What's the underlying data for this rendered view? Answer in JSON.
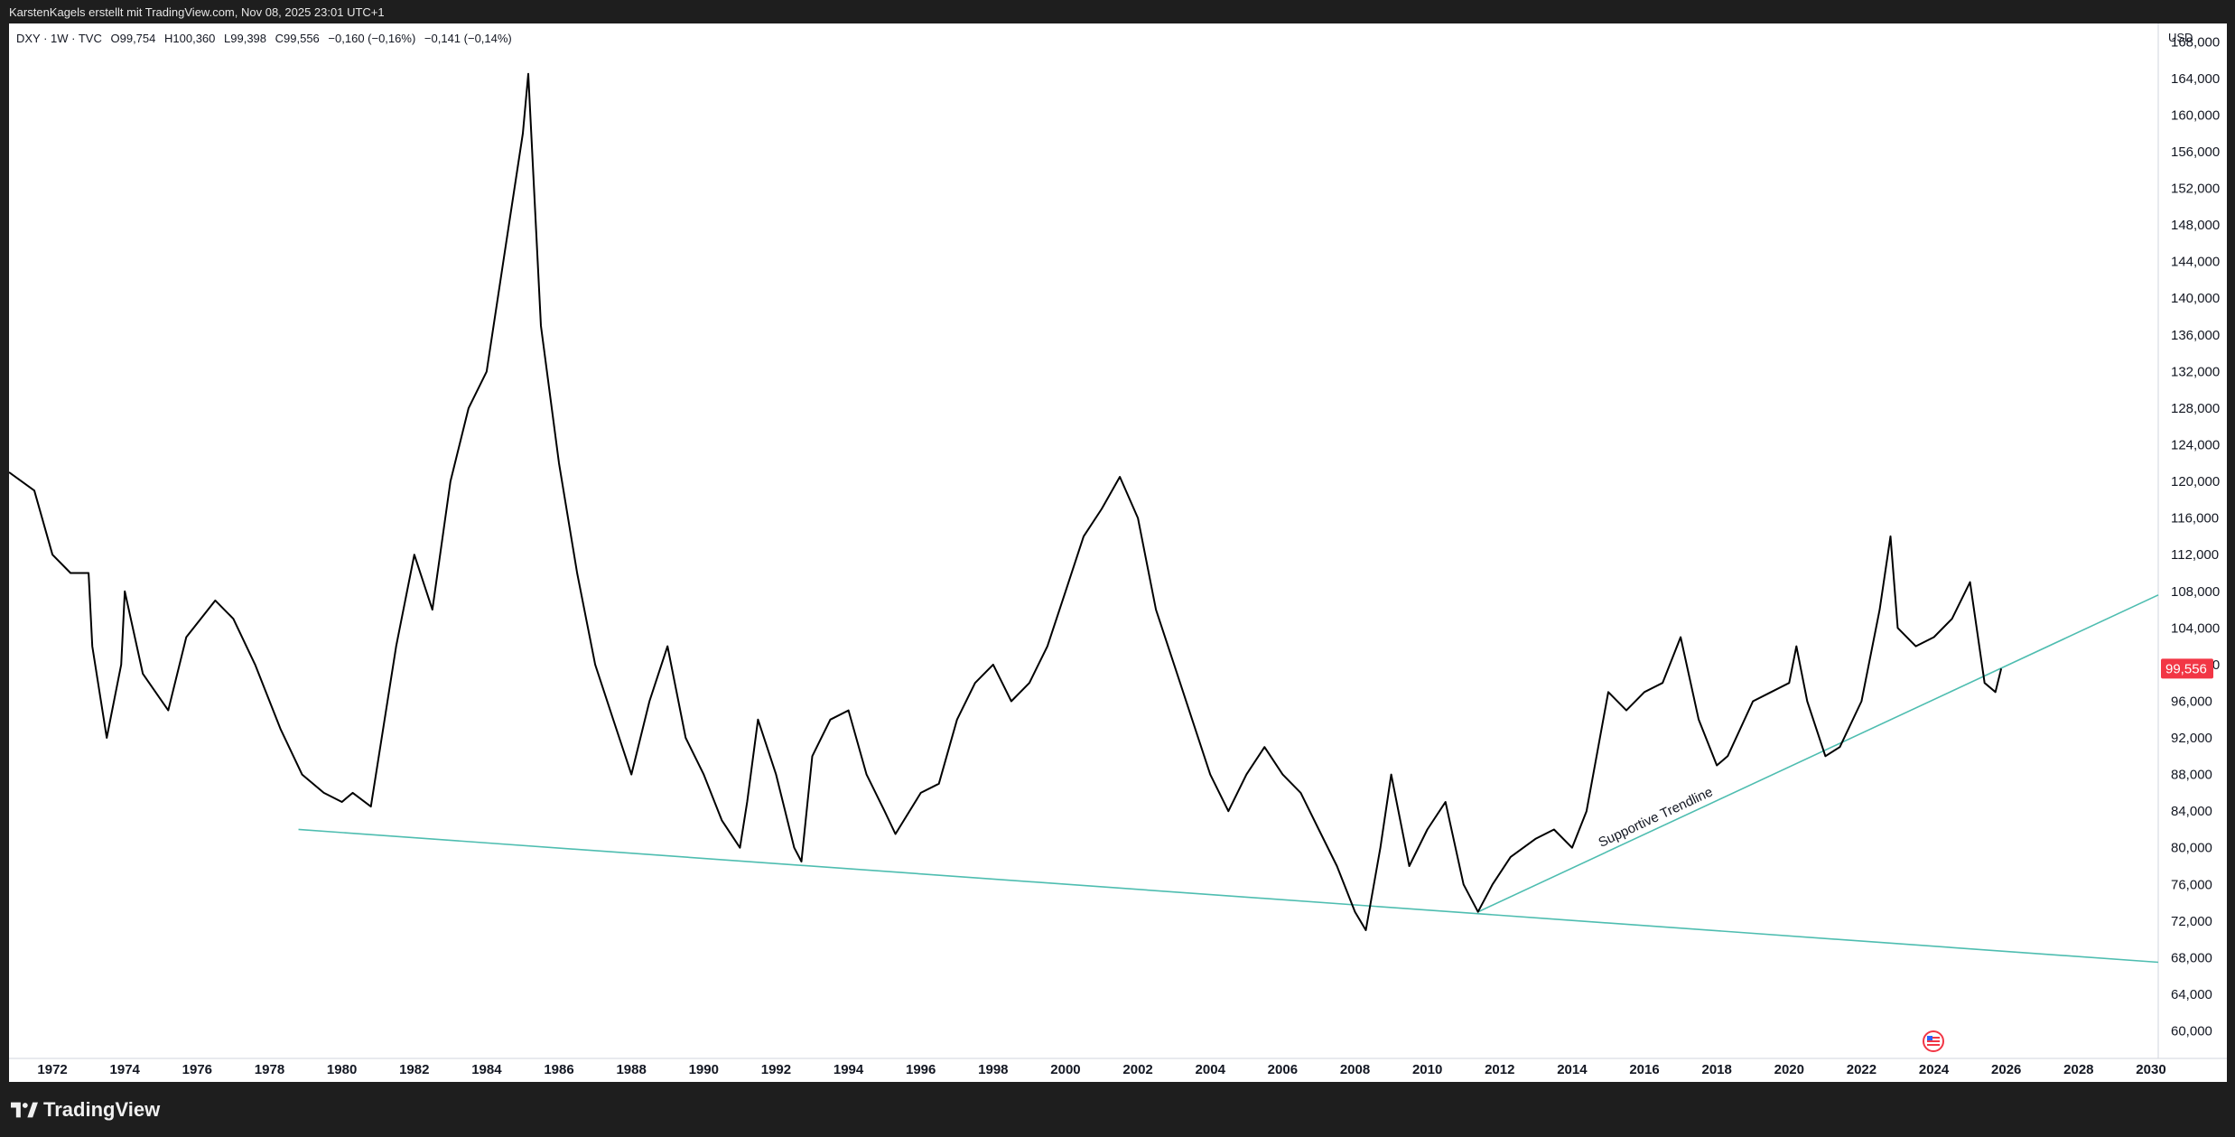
{
  "header": {
    "credit": "KarstenKagels erstellt mit TradingView.com, Nov 08, 2025 23:01 UTC+1"
  },
  "legend": {
    "symbol": "DXY · 1W · TVC",
    "open": "O99,754",
    "high": "H100,360",
    "low": "L99,398",
    "close": "C99,556",
    "change1": "−0,160 (−0,16%)",
    "change2": "−0,141 (−0,14%)"
  },
  "price_axis": {
    "currency": "USD",
    "last_price_label": "99,556",
    "last_price_color": "#f23645"
  },
  "footer": {
    "brand": "TradingView"
  },
  "colors": {
    "trendline": "#4ebdb0",
    "price_line": "#000000"
  },
  "chart_data": {
    "type": "line",
    "title": "",
    "x_unit": "year",
    "y_unit": "price",
    "xlim": [
      1970.8,
      2030.2
    ],
    "ylim": [
      57000,
      170000
    ],
    "yticks": [
      60000,
      64000,
      68000,
      72000,
      76000,
      80000,
      84000,
      88000,
      92000,
      96000,
      100000,
      104000,
      108000,
      112000,
      116000,
      120000,
      124000,
      128000,
      132000,
      136000,
      140000,
      144000,
      148000,
      152000,
      156000,
      160000,
      164000,
      168000
    ],
    "ytick_labels": [
      "60,000",
      "64,000",
      "68,000",
      "72,000",
      "76,000",
      "80,000",
      "84,000",
      "88,000",
      "92,000",
      "96,000",
      "100,000",
      "104,000",
      "108,000",
      "112,000",
      "116,000",
      "120,000",
      "124,000",
      "128,000",
      "132,000",
      "136,000",
      "140,000",
      "144,000",
      "148,000",
      "152,000",
      "156,000",
      "160,000",
      "164,000",
      "168,000"
    ],
    "xticks": [
      1972,
      1974,
      1976,
      1978,
      1980,
      1982,
      1984,
      1986,
      1988,
      1990,
      1992,
      1994,
      1996,
      1998,
      2000,
      2002,
      2004,
      2006,
      2008,
      2010,
      2012,
      2014,
      2016,
      2018,
      2020,
      2022,
      2024,
      2026,
      2028,
      2030
    ],
    "xtick_labels": [
      "1972",
      "1974",
      "1976",
      "1978",
      "1980",
      "1982",
      "1984",
      "1986",
      "1988",
      "1990",
      "1992",
      "1994",
      "1996",
      "1998",
      "2000",
      "2002",
      "2004",
      "2006",
      "2008",
      "2010",
      "2012",
      "2014",
      "2016",
      "2018",
      "2020",
      "2022",
      "2024",
      "2026",
      "2028",
      "2030"
    ],
    "series": [
      {
        "x": [
          1970.8,
          1971.5,
          1972.0,
          1972.5,
          1973.0,
          1973.1,
          1973.5,
          1973.9,
          1974.0,
          1974.5,
          1975.2,
          1975.7,
          1976.5,
          1977.0,
          1977.6,
          1978.3,
          1978.9,
          1979.5,
          1980.0,
          1980.3,
          1980.8,
          1981.5,
          1982.0,
          1982.5,
          1983.0,
          1983.5,
          1984.0,
          1984.5,
          1985.0,
          1985.15,
          1985.5,
          1986.0,
          1986.5,
          1987.0,
          1987.5,
          1988.0,
          1988.5,
          1989.0,
          1989.5,
          1990.0,
          1990.5,
          1991.0,
          1991.2,
          1991.5,
          1992.0,
          1992.5,
          1992.7,
          1993.0,
          1993.5,
          1994.0,
          1994.5,
          1995.0,
          1995.3,
          1996.0,
          1996.5,
          1997.0,
          1997.5,
          1998.0,
          1998.5,
          1999.0,
          1999.5,
          2000.0,
          2000.5,
          2001.0,
          2001.5,
          2002.0,
          2002.5,
          2003.0,
          2003.5,
          2004.0,
          2004.5,
          2005.0,
          2005.5,
          2006.0,
          2006.5,
          2007.0,
          2007.5,
          2008.0,
          2008.3,
          2008.7,
          2009.0,
          2009.5,
          2010.0,
          2010.5,
          2011.0,
          2011.4,
          2011.8,
          2012.3,
          2013.0,
          2013.5,
          2014.0,
          2014.4,
          2015.0,
          2015.5,
          2016.0,
          2016.5,
          2017.0,
          2017.5,
          2018.0,
          2018.3,
          2019.0,
          2019.5,
          2020.0,
          2020.2,
          2020.5,
          2021.0,
          2021.4,
          2022.0,
          2022.5,
          2022.8,
          2023.0,
          2023.5,
          2024.0,
          2024.5,
          2025.0,
          2025.4,
          2025.7,
          2025.86
        ],
        "y": [
          121000,
          119000,
          112000,
          110000,
          110000,
          102000,
          92000,
          100000,
          108000,
          99000,
          95000,
          103000,
          107000,
          105000,
          100000,
          93000,
          88000,
          86000,
          85000,
          86000,
          84500,
          102000,
          112000,
          106000,
          120000,
          128000,
          132000,
          145000,
          158000,
          164500,
          137000,
          122000,
          110000,
          100000,
          94000,
          88000,
          96000,
          102000,
          92000,
          88000,
          83000,
          80000,
          85000,
          94000,
          88000,
          80000,
          78500,
          90000,
          94000,
          95000,
          88000,
          84000,
          81500,
          86000,
          87000,
          94000,
          98000,
          100000,
          96000,
          98000,
          102000,
          108000,
          114000,
          117000,
          120500,
          116000,
          106000,
          100000,
          94000,
          88000,
          84000,
          88000,
          91000,
          88000,
          86000,
          82000,
          78000,
          73000,
          71000,
          80000,
          88000,
          78000,
          82000,
          85000,
          76000,
          73000,
          76000,
          79000,
          81000,
          82000,
          80000,
          84000,
          97000,
          95000,
          97000,
          98000,
          103000,
          94000,
          89000,
          90000,
          96000,
          97000,
          98000,
          102000,
          96000,
          90000,
          91000,
          96000,
          106000,
          114000,
          104000,
          102000,
          103000,
          105000,
          109000,
          98000,
          97000,
          99556
        ]
      }
    ],
    "trendlines": [
      {
        "x": [
          1978.8,
          2030.2
        ],
        "y": [
          82000,
          67500
        ]
      },
      {
        "x": [
          2011.4,
          2030.2
        ],
        "y": [
          73000,
          107600
        ]
      }
    ],
    "annotations": [
      {
        "text": "Supportive Trendline"
      }
    ]
  }
}
